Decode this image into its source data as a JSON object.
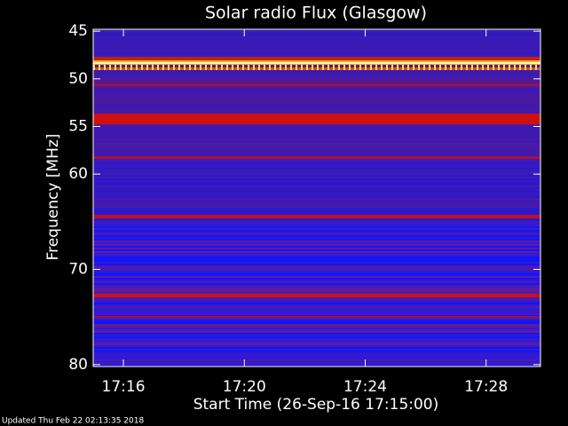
{
  "chart_data": {
    "type": "spectrogram",
    "title": "Solar radio Flux (Glasgow)",
    "y_label": "Frequency [MHz]",
    "x_label": "Start Time (26-Sep-16 17:15:00)",
    "footer": "Updated Thu Feb 22 02:13:35 2018",
    "xlim": [
      1035,
      1049.8
    ],
    "xticks": [
      {
        "value": 1036,
        "label": "17:16"
      },
      {
        "value": 1040,
        "label": "17:20"
      },
      {
        "value": 1044,
        "label": "17:24"
      },
      {
        "value": 1048,
        "label": "17:28"
      }
    ],
    "ylim": [
      44.8,
      80.2
    ],
    "yticks": [
      45,
      50,
      55,
      60,
      70,
      80
    ]
  }
}
